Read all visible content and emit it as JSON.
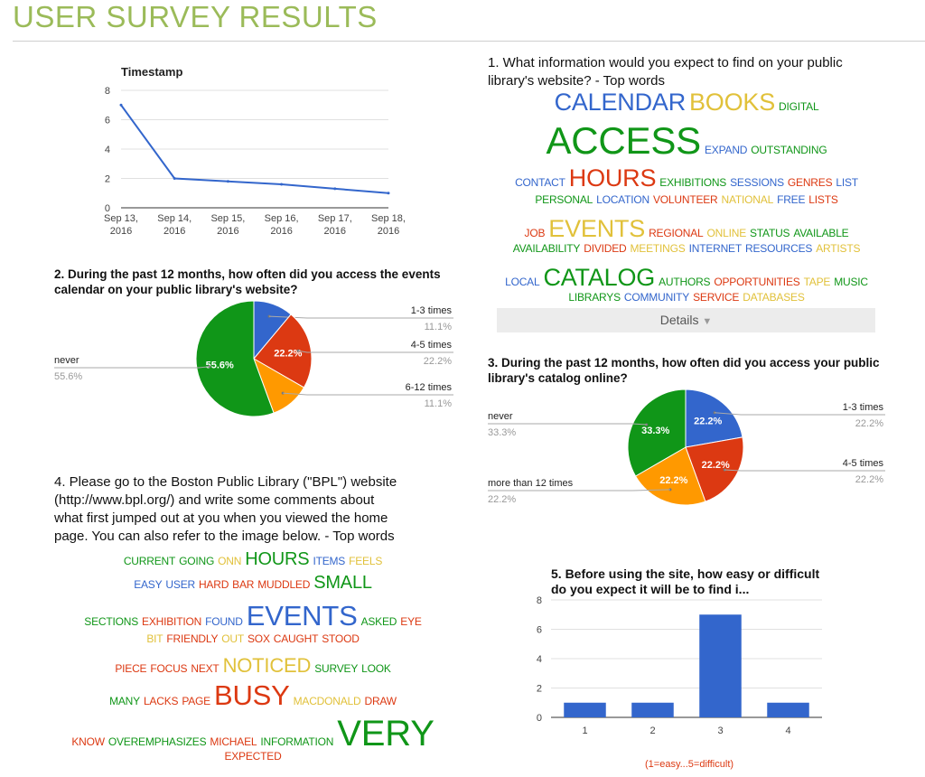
{
  "page": {
    "title": "USER SURVEY RESULTS"
  },
  "colors": {
    "blue": "#3366cc",
    "red": "#dc3912",
    "orange": "#ff9900",
    "green": "#109618",
    "title": "#9bbb59",
    "grid": "#e0e0e0"
  },
  "chart_data": [
    {
      "type": "line",
      "title": "Timestamp",
      "x": [
        "Sep 13, 2016",
        "Sep 14, 2016",
        "Sep 15, 2016",
        "Sep 16, 2016",
        "Sep 17, 2016",
        "Sep 18, 2016"
      ],
      "x_ticks": [
        [
          "Sep 13,",
          "2016"
        ],
        [
          "Sep 14,",
          "2016"
        ],
        [
          "Sep 15,",
          "2016"
        ],
        [
          "Sep 16,",
          "2016"
        ],
        [
          "Sep 17,",
          "2016"
        ],
        [
          "Sep 18,",
          "2016"
        ]
      ],
      "values": [
        7,
        2,
        1.8,
        1.6,
        1.3,
        1
      ],
      "ylim": [
        0,
        8
      ],
      "yticks": [
        "0",
        "2",
        "4",
        "6",
        "8"
      ],
      "grid": true,
      "color": "#3366cc"
    },
    {
      "type": "pie",
      "title": "2. During the past 12 months, how often did you access the events calendar on your public library's website?",
      "slices": [
        {
          "label": "1-3 times",
          "value": 11.1,
          "pct": "11.1%",
          "color": "#3366cc"
        },
        {
          "label": "4-5 times",
          "value": 22.2,
          "pct": "22.2%",
          "color": "#dc3912",
          "inner": "22.2%"
        },
        {
          "label": "6-12 times",
          "value": 11.1,
          "pct": "11.1%",
          "color": "#ff9900"
        },
        {
          "label": "never",
          "value": 55.6,
          "pct": "55.6%",
          "color": "#109618",
          "inner": "55.6%"
        }
      ]
    },
    {
      "type": "pie",
      "title": "3. During the past 12 months, how often did you access your public library's catalog online?",
      "slices": [
        {
          "label": "1-3 times",
          "value": 22.2,
          "pct": "22.2%",
          "color": "#3366cc",
          "inner": "22.2%"
        },
        {
          "label": "4-5 times",
          "value": 22.2,
          "pct": "22.2%",
          "color": "#dc3912",
          "inner": "22.2%"
        },
        {
          "label": "more than 12 times",
          "value": 22.2,
          "pct": "22.2%",
          "color": "#ff9900",
          "inner": "22.2%"
        },
        {
          "label": "never",
          "value": 33.3,
          "pct": "33.3%",
          "color": "#109618",
          "inner": "33.3%"
        }
      ]
    },
    {
      "type": "bar",
      "title": "5. Before using the site, how easy or difficult do you expect it will be to find i...",
      "categories": [
        "1",
        "2",
        "3",
        "4"
      ],
      "values": [
        1,
        1,
        7,
        1
      ],
      "ylim": [
        0,
        8
      ],
      "yticks": [
        "0",
        "2",
        "4",
        "6",
        "8"
      ],
      "xlabel": "(1=easy...5=difficult)",
      "grid": true,
      "color": "#3366cc"
    }
  ],
  "q1": {
    "title": "1. What information would you expect to find on your public library's website? - Top words",
    "cloud": [
      [
        [
          "CALENDAR",
          "#3366cc",
          27
        ],
        [
          "BOOKS",
          "#e1c13a",
          27
        ],
        [
          "DIGITAL",
          "#109618",
          12
        ]
      ],
      [
        [
          "ACCESS",
          "#109618",
          42
        ],
        [
          "EXPAND",
          "#3366cc",
          12
        ],
        [
          "OUTSTANDING",
          "#109618",
          12
        ]
      ],
      [
        [
          "CONTACT",
          "#3366cc",
          12
        ],
        [
          "HOURS",
          "#dc3912",
          27
        ],
        [
          "EXHIBITIONS",
          "#109618",
          12
        ],
        [
          "SESSIONS",
          "#3366cc",
          12
        ],
        [
          "GENRES",
          "#dc3912",
          12
        ],
        [
          "LIST",
          "#3366cc",
          12
        ]
      ],
      [
        [
          "PERSONAL",
          "#109618",
          12
        ],
        [
          "LOCATION",
          "#3366cc",
          12
        ],
        [
          "VOLUNTEER",
          "#dc3912",
          12
        ],
        [
          "NATIONAL",
          "#e1c13a",
          12
        ],
        [
          "FREE",
          "#3366cc",
          12
        ],
        [
          "LISTS",
          "#dc3912",
          12
        ]
      ],
      [
        [
          "JOB",
          "#dc3912",
          12
        ],
        [
          "EVENTS",
          "#e1c13a",
          27
        ],
        [
          "REGIONAL",
          "#dc3912",
          12
        ],
        [
          "ONLINE",
          "#e1c13a",
          12
        ],
        [
          "STATUS",
          "#109618",
          12
        ],
        [
          "AVAILABLE",
          "#109618",
          12
        ]
      ],
      [
        [
          "AVAILABILITY",
          "#109618",
          12
        ],
        [
          "DIVIDED",
          "#dc3912",
          12
        ],
        [
          "MEETINGS",
          "#e1c13a",
          12
        ],
        [
          "INTERNET",
          "#3366cc",
          12
        ],
        [
          "RESOURCES",
          "#3366cc",
          12
        ],
        [
          "ARTISTS",
          "#e1c13a",
          12
        ]
      ],
      [
        [
          "LOCAL",
          "#3366cc",
          12
        ],
        [
          "CATALOG",
          "#109618",
          27
        ],
        [
          "AUTHORS",
          "#109618",
          12
        ],
        [
          "OPPORTUNITIES",
          "#dc3912",
          12
        ],
        [
          "TAPE",
          "#e1c13a",
          12
        ],
        [
          "MUSIC",
          "#109618",
          12
        ]
      ],
      [
        [
          "LIBRARYS",
          "#109618",
          12
        ],
        [
          "COMMUNITY",
          "#3366cc",
          12
        ],
        [
          "SERVICE",
          "#dc3912",
          12
        ],
        [
          "DATABASES",
          "#e1c13a",
          12
        ]
      ]
    ],
    "details_label": "Details",
    "details_arrow": "▼"
  },
  "q4": {
    "title": "4. Please go to the Boston Public Library (\"BPL\") website (http://www.bpl.org/) and write some comments about what first jumped out at you when you viewed the home page. You can also refer to the image below. - Top words",
    "title_lines": [
      "4. Please go to the Boston Public Library (\"BPL\") website",
      "(http://www.bpl.org/) and write some comments about",
      "what first jumped out at you when you viewed the home",
      "page. You can also refer to the image below. - Top words"
    ],
    "cloud": [
      [
        [
          "CURRENT",
          "#109618",
          12
        ],
        [
          "GOING",
          "#109618",
          12
        ],
        [
          "ONN",
          "#e1c13a",
          12
        ],
        [
          "HOURS",
          "#109618",
          20
        ],
        [
          "ITEMS",
          "#3366cc",
          12
        ],
        [
          "FEELS",
          "#e1c13a",
          12
        ]
      ],
      [
        [
          "EASY",
          "#3366cc",
          12
        ],
        [
          "USER",
          "#3366cc",
          12
        ],
        [
          "HARD",
          "#dc3912",
          12
        ],
        [
          "BAR",
          "#dc3912",
          12
        ],
        [
          "MUDDLED",
          "#dc3912",
          12
        ],
        [
          "SMALL",
          "#109618",
          20
        ]
      ],
      [
        [
          "SECTIONS",
          "#109618",
          12
        ],
        [
          "EXHIBITION",
          "#dc3912",
          12
        ],
        [
          "FOUND",
          "#3366cc",
          12
        ],
        [
          "EVENTS",
          "#3366cc",
          31
        ],
        [
          "ASKED",
          "#109618",
          12
        ],
        [
          "EYE",
          "#dc3912",
          12
        ]
      ],
      [
        [
          "BIT",
          "#e1c13a",
          12
        ],
        [
          "FRIENDLY",
          "#dc3912",
          12
        ],
        [
          "OUT",
          "#e1c13a",
          12
        ],
        [
          "SOX",
          "#dc3912",
          12
        ],
        [
          "CAUGHT",
          "#dc3912",
          12
        ],
        [
          "STOOD",
          "#dc3912",
          12
        ]
      ],
      [
        [
          "PIECE",
          "#dc3912",
          12
        ],
        [
          "FOCUS",
          "#dc3912",
          12
        ],
        [
          "NEXT",
          "#dc3912",
          12
        ],
        [
          "NOTICED",
          "#e1c13a",
          22
        ],
        [
          "SURVEY",
          "#109618",
          12
        ],
        [
          "LOOK",
          "#109618",
          12
        ]
      ],
      [
        [
          "MANY",
          "#109618",
          12
        ],
        [
          "LACKS",
          "#dc3912",
          12
        ],
        [
          "PAGE",
          "#dc3912",
          12
        ],
        [
          "BUSY",
          "#dc3912",
          31
        ],
        [
          "MACDONALD",
          "#e1c13a",
          12
        ],
        [
          "DRAW",
          "#dc3912",
          12
        ]
      ],
      [
        [
          "KNOW",
          "#dc3912",
          12
        ],
        [
          "OVEREMPHASIZES",
          "#109618",
          12
        ],
        [
          "MICHAEL",
          "#dc3912",
          12
        ],
        [
          "INFORMATION",
          "#109618",
          12
        ],
        [
          "VERY",
          "#109618",
          40
        ]
      ],
      [
        [
          "EXPECTED",
          "#dc3912",
          12
        ]
      ]
    ]
  }
}
